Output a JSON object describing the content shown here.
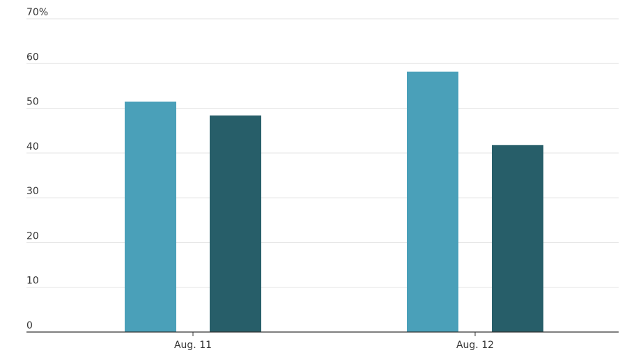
{
  "chart_data": {
    "type": "bar",
    "categories": [
      "Aug. 11",
      "Aug. 12"
    ],
    "series": [
      {
        "color": "#4aa0b9",
        "values": [
          51.5,
          58.2
        ]
      },
      {
        "color": "#275e69",
        "values": [
          48.4,
          41.8
        ]
      }
    ],
    "ylim": [
      0,
      70
    ],
    "yticks": [
      0,
      10,
      20,
      30,
      40,
      50,
      60,
      {
        "value": 70,
        "label": "70%"
      }
    ],
    "grid": true
  }
}
